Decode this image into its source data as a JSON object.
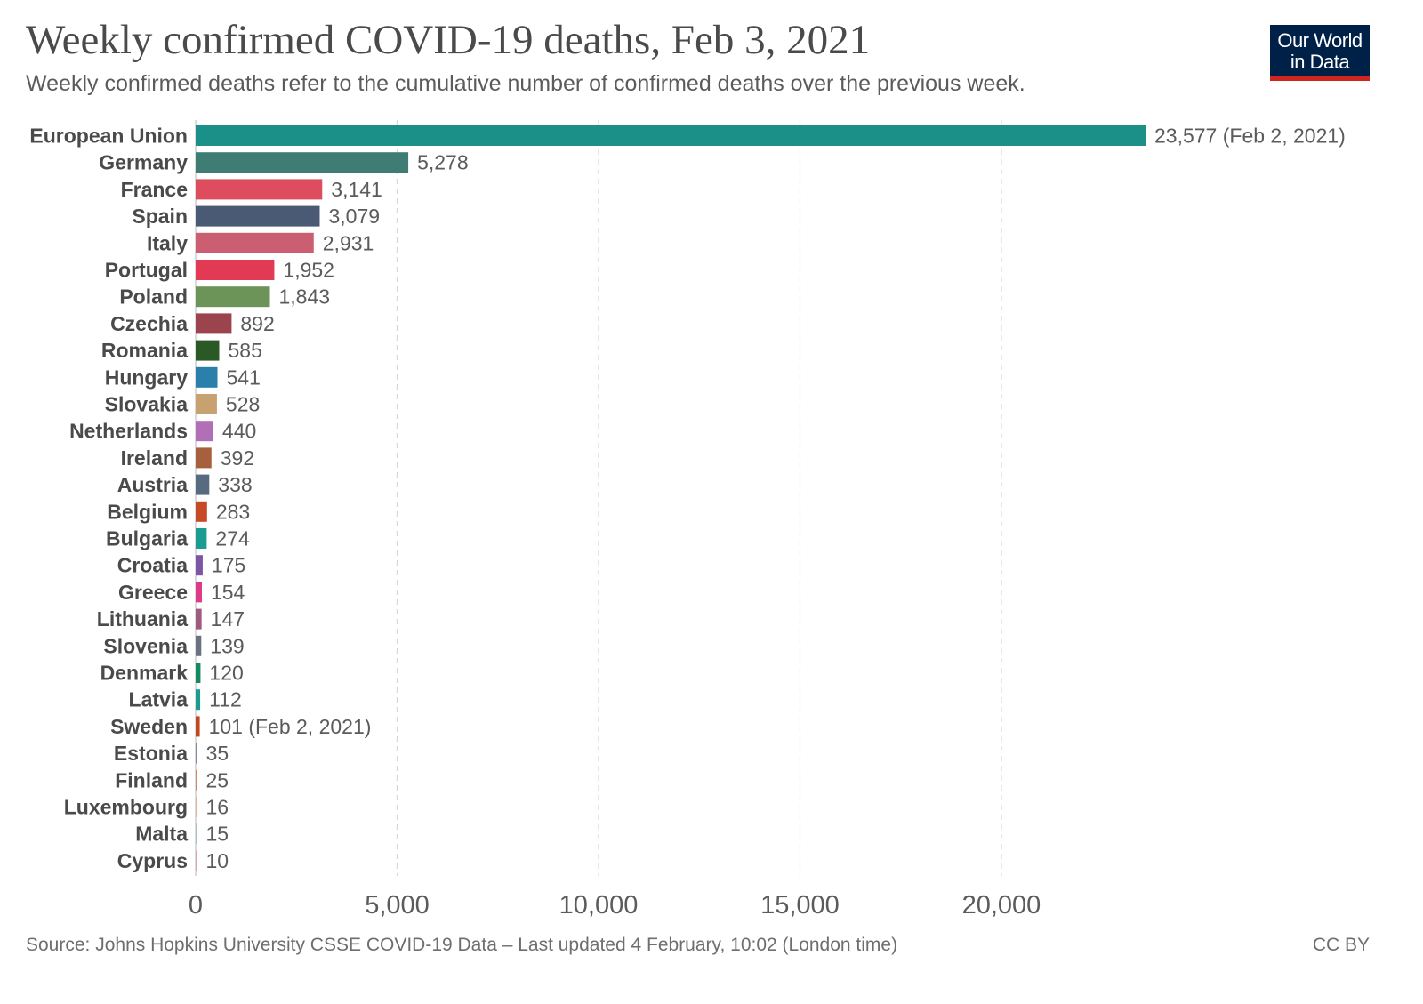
{
  "header": {
    "title": "Weekly confirmed COVID-19 deaths, Feb 3, 2021",
    "subtitle": "Weekly confirmed deaths refer to the cumulative number of confirmed deaths over the previous week."
  },
  "logo": {
    "line1": "Our World",
    "line2": "in Data",
    "bg_color": "#002147",
    "accent_color": "#ce261e"
  },
  "footer": {
    "source": "Source: Johns Hopkins University CSSE COVID-19 Data – Last updated 4 February, 10:02 (London time)",
    "license": "CC BY"
  },
  "chart_data": {
    "type": "bar",
    "orientation": "horizontal",
    "title": "Weekly confirmed COVID-19 deaths, Feb 3, 2021",
    "xlim": [
      0,
      23577
    ],
    "x_ticks": [
      0,
      5000,
      10000,
      15000,
      20000
    ],
    "x_tick_labels": [
      "0",
      "5,000",
      "10,000",
      "15,000",
      "20,000"
    ],
    "grid": "vertical dashed",
    "categories": [
      "European Union",
      "Germany",
      "France",
      "Spain",
      "Italy",
      "Portugal",
      "Poland",
      "Czechia",
      "Romania",
      "Hungary",
      "Slovakia",
      "Netherlands",
      "Ireland",
      "Austria",
      "Belgium",
      "Bulgaria",
      "Croatia",
      "Greece",
      "Lithuania",
      "Slovenia",
      "Denmark",
      "Latvia",
      "Sweden",
      "Estonia",
      "Finland",
      "Luxembourg",
      "Malta",
      "Cyprus"
    ],
    "values": [
      23577,
      5278,
      3141,
      3079,
      2931,
      1952,
      1843,
      892,
      585,
      541,
      528,
      440,
      392,
      338,
      283,
      274,
      175,
      154,
      147,
      139,
      120,
      112,
      101,
      35,
      25,
      16,
      15,
      10
    ],
    "value_labels": [
      "23,577 (Feb 2, 2021)",
      "5,278",
      "3,141",
      "3,079",
      "2,931",
      "1,952",
      "1,843",
      "892",
      "585",
      "541",
      "528",
      "440",
      "392",
      "338",
      "283",
      "274",
      "175",
      "154",
      "147",
      "139",
      "120",
      "112",
      "101 (Feb 2, 2021)",
      "35",
      "25",
      "16",
      "15",
      "10"
    ],
    "colors": [
      "#1a9089",
      "#3f7d74",
      "#dd4d5e",
      "#4a5a74",
      "#cb5e70",
      "#e23a54",
      "#6c9458",
      "#9c444e",
      "#2a5926",
      "#2a80ab",
      "#c8a170",
      "#b06fb6",
      "#a7603e",
      "#576a7f",
      "#c74a27",
      "#1c9c91",
      "#7c56a4",
      "#dd3a8a",
      "#a05a80",
      "#6b7180",
      "#168a5e",
      "#1c9c91",
      "#c4461c",
      "#7e8aa5",
      "#d28a6c",
      "#e2b49c",
      "#a8c0d0",
      "#d9a5b8"
    ]
  }
}
